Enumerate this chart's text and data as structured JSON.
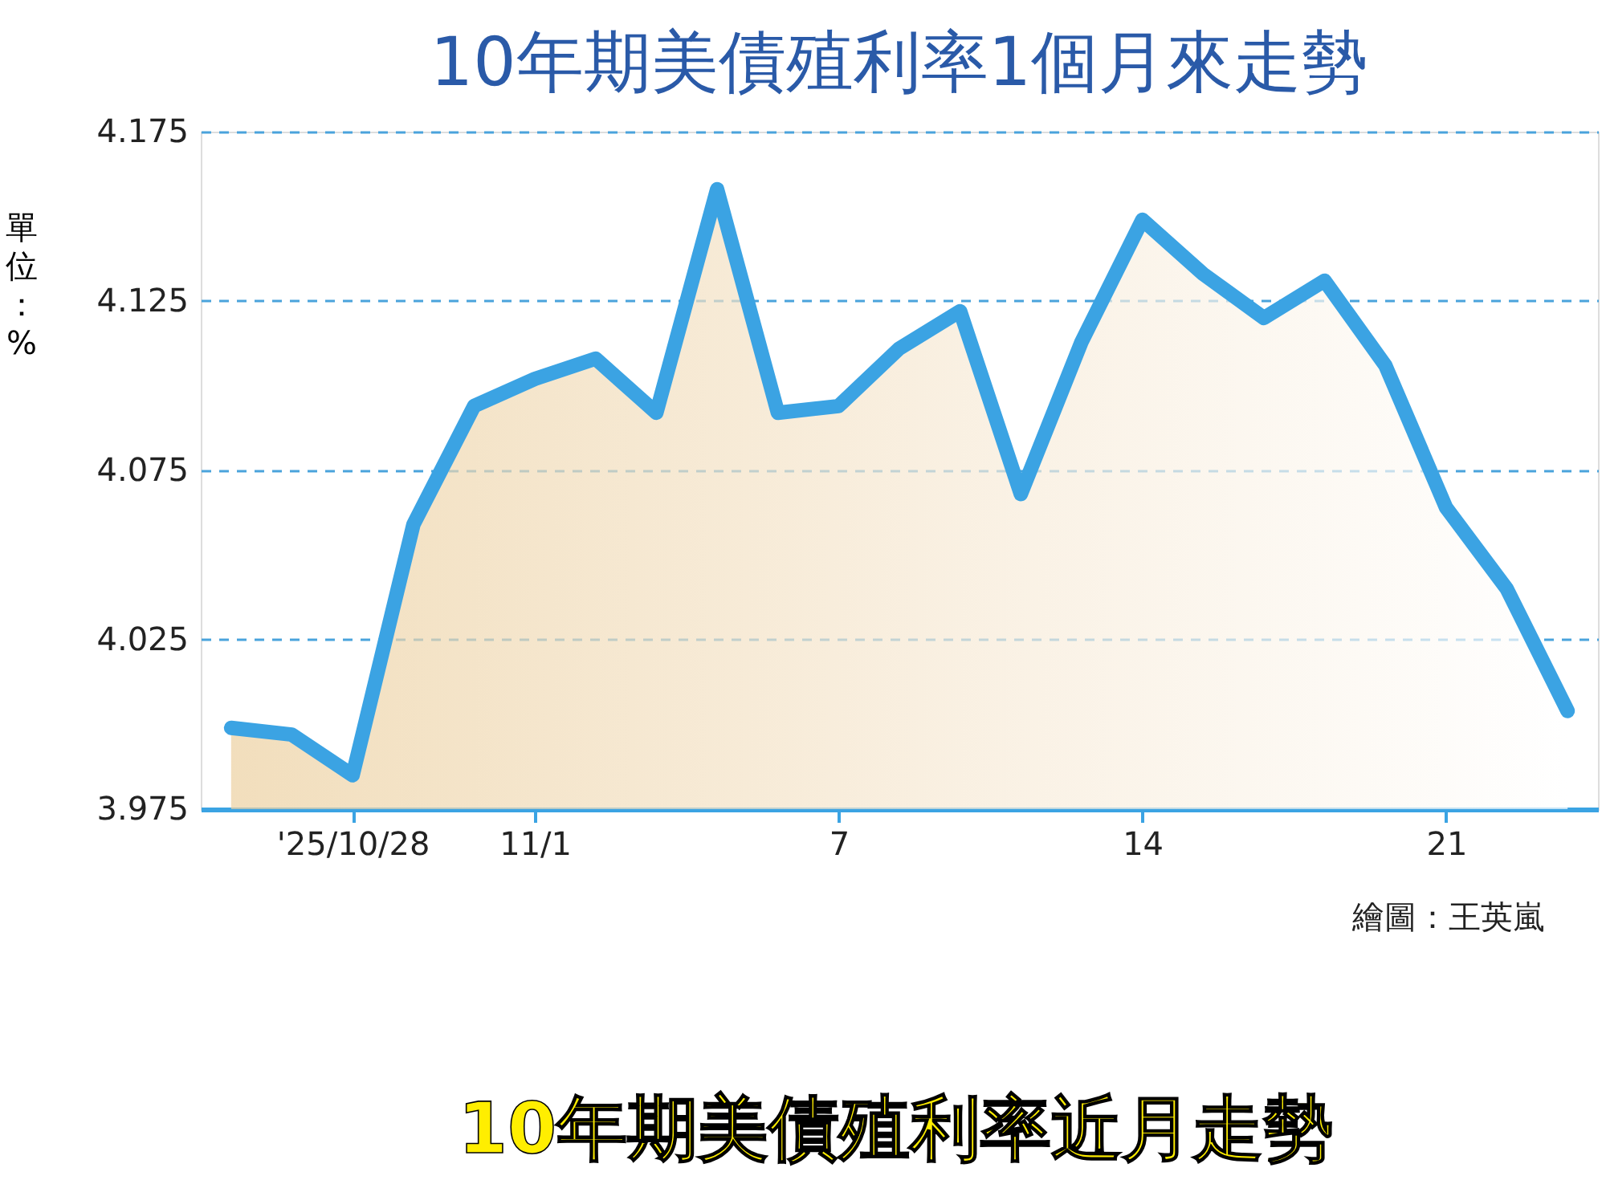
{
  "chart_data": {
    "type": "area",
    "title": "10年期美債殖利率1個月來走勢",
    "ylabel": "單位：%",
    "categories": [
      null,
      null,
      "'25/10/28",
      null,
      null,
      "11/1",
      null,
      null,
      null,
      null,
      "7",
      null,
      null,
      null,
      null,
      "14",
      null,
      null,
      null,
      null,
      "21",
      null,
      null
    ],
    "series": [
      {
        "color": "#3ba3e3",
        "values": [
          3.999,
          3.997,
          3.985,
          4.059,
          4.094,
          4.102,
          4.108,
          4.092,
          4.158,
          4.092,
          4.094,
          4.111,
          4.122,
          4.068,
          4.113,
          4.149,
          4.133,
          4.12,
          4.131,
          4.106,
          4.064,
          4.04,
          4.004
        ]
      }
    ],
    "ylim": [
      3.975,
      4.175
    ],
    "yticks": [
      3.975,
      4.025,
      4.075,
      4.125,
      4.175
    ],
    "grid": "y",
    "annotations": [
      "繪圖：王英嵐",
      "10年期美債殖利率近月走勢"
    ]
  }
}
